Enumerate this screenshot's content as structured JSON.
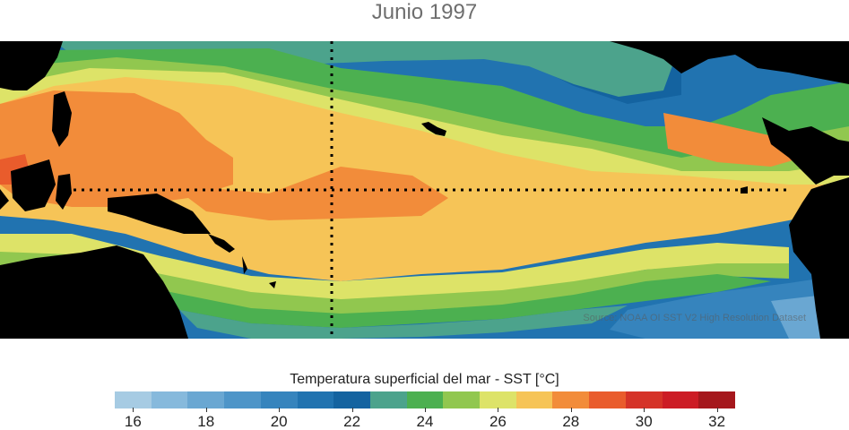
{
  "title": "Junio 1997",
  "source": "Source: NOAA OI SST V2 High Resolution Dataset",
  "colorbar": {
    "title": "Temperatura superficial del mar - SST  [°C]",
    "ticks": [
      "16",
      "18",
      "20",
      "22",
      "24",
      "26",
      "28",
      "30",
      "32"
    ],
    "colors": [
      "#a6cbe3",
      "#86b9dc",
      "#6aa7d2",
      "#4e95c8",
      "#3684bd",
      "#2173b0",
      "#1463a0",
      "#4ca38c",
      "#4cb050",
      "#91c74f",
      "#dde368",
      "#f6c457",
      "#f28c3a",
      "#e95c2c",
      "#d53328",
      "#cc1c25",
      "#a5171c"
    ]
  },
  "map": {
    "region": "Tropical Pacific",
    "land_color": "#000000",
    "guide_lines": "dotted equator and meridian",
    "palette": {
      "t16": "#a6cbe3",
      "t18": "#6aa7d2",
      "t20": "#3684bd",
      "t22": "#1463a0",
      "t24": "#4ca38c",
      "t25": "#4cb050",
      "t26": "#91c74f",
      "t27": "#dde368",
      "t28": "#f6c457",
      "t29": "#f28c3a",
      "t30": "#e95c2c"
    }
  }
}
